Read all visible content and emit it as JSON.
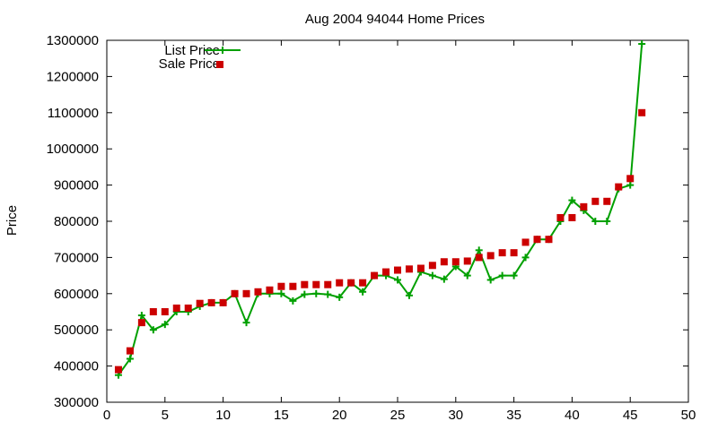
{
  "chart_data": {
    "type": "line",
    "title": "Aug 2004 94044 Home Prices",
    "xlabel": "",
    "ylabel": "Price",
    "xlim": [
      0,
      50
    ],
    "ylim": [
      300000,
      1300000
    ],
    "xticks": [
      0,
      5,
      10,
      15,
      20,
      25,
      30,
      35,
      40,
      45,
      50
    ],
    "yticks": [
      300000,
      400000,
      500000,
      600000,
      700000,
      800000,
      900000,
      1000000,
      1100000,
      1200000,
      1300000
    ],
    "grid": false,
    "legend_position": "top-left",
    "series": [
      {
        "name": "List Price",
        "style": "line-with-plus-markers",
        "color": "#00a000",
        "x": [
          1,
          2,
          3,
          4,
          5,
          6,
          7,
          8,
          9,
          10,
          11,
          12,
          13,
          14,
          15,
          16,
          17,
          18,
          19,
          20,
          21,
          22,
          23,
          24,
          25,
          26,
          27,
          28,
          29,
          30,
          31,
          32,
          33,
          34,
          35,
          36,
          37,
          38,
          39,
          40,
          41,
          42,
          43,
          44,
          45,
          46
        ],
        "values": [
          375000,
          420000,
          540000,
          500000,
          515000,
          550000,
          550000,
          565000,
          575000,
          575000,
          600000,
          520000,
          600000,
          600000,
          600000,
          580000,
          598000,
          600000,
          598000,
          590000,
          630000,
          605000,
          650000,
          650000,
          638000,
          595000,
          660000,
          650000,
          640000,
          675000,
          650000,
          720000,
          638000,
          650000,
          650000,
          700000,
          750000,
          750000,
          800000,
          858000,
          830000,
          800000,
          800000,
          890000,
          900000,
          1290000
        ]
      },
      {
        "name": "Sale Price",
        "style": "square-markers",
        "color": "#cc0000",
        "x": [
          1,
          2,
          3,
          4,
          5,
          6,
          7,
          8,
          9,
          10,
          11,
          12,
          13,
          14,
          15,
          16,
          17,
          18,
          19,
          20,
          21,
          22,
          23,
          24,
          25,
          26,
          27,
          28,
          29,
          30,
          31,
          32,
          33,
          34,
          35,
          36,
          37,
          38,
          39,
          40,
          41,
          42,
          43,
          44,
          45,
          46
        ],
        "values": [
          390000,
          442000,
          520000,
          550000,
          550000,
          560000,
          560000,
          573000,
          575000,
          575000,
          600000,
          600000,
          605000,
          610000,
          620000,
          620000,
          625000,
          625000,
          625000,
          630000,
          630000,
          630000,
          650000,
          660000,
          665000,
          668000,
          670000,
          678000,
          688000,
          688000,
          690000,
          700000,
          705000,
          713000,
          713000,
          742000,
          750000,
          750000,
          810000,
          810000,
          840000,
          855000,
          855000,
          895000,
          918000,
          1100000
        ]
      }
    ]
  }
}
